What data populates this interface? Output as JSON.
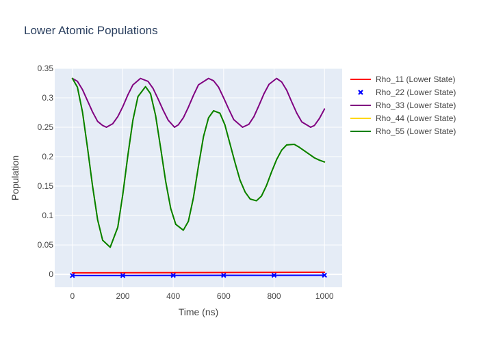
{
  "chart_data": {
    "type": "line",
    "title": "Lower Atomic Populations",
    "xlabel": "Time (ns)",
    "ylabel": "Population",
    "xlim": [
      -70,
      1070
    ],
    "ylim": [
      -0.022,
      0.35
    ],
    "xticks": [
      0,
      200,
      400,
      600,
      800,
      1000
    ],
    "xtick_labels": [
      "0",
      "200",
      "400",
      "600",
      "800",
      "1000"
    ],
    "yticks": [
      0,
      0.05,
      0.1,
      0.15,
      0.2,
      0.25,
      0.3,
      0.35
    ],
    "ytick_labels": [
      "0",
      "0.05",
      "0.1",
      "0.15",
      "0.2",
      "0.25",
      "0.3",
      "0.35"
    ],
    "grid": true,
    "plot_background": "#e5ecf6",
    "grid_color": "#ffffff",
    "legend_position": "right",
    "series": [
      {
        "name": "Rho_11 (Lower State)",
        "color": "#ff0000",
        "mode": "lines",
        "x": [
          0,
          1000
        ],
        "y": [
          0.0025,
          0.0035
        ]
      },
      {
        "name": "Rho_22 (Lower State)",
        "color": "#0000ff",
        "mode": "markers",
        "marker": "x",
        "x": [
          0,
          200,
          400,
          600,
          800,
          1000
        ],
        "y": [
          -0.002,
          -0.002,
          -0.0018,
          -0.0017,
          -0.0016,
          -0.0015
        ]
      },
      {
        "name": "Rho_33 (Lower State)",
        "color": "#800080",
        "mode": "lines",
        "x": [
          0,
          20,
          40,
          60,
          80,
          100,
          120,
          135,
          160,
          180,
          200,
          220,
          240,
          270,
          300,
          320,
          340,
          360,
          380,
          405,
          420,
          440,
          460,
          480,
          500,
          540,
          560,
          580,
          600,
          620,
          640,
          675,
          700,
          720,
          740,
          760,
          780,
          810,
          830,
          850,
          870,
          890,
          910,
          945,
          960,
          980,
          1000
        ],
        "y": [
          0.333,
          0.328,
          0.314,
          0.295,
          0.276,
          0.26,
          0.253,
          0.25,
          0.256,
          0.268,
          0.285,
          0.305,
          0.322,
          0.333,
          0.328,
          0.316,
          0.298,
          0.279,
          0.262,
          0.25,
          0.254,
          0.266,
          0.284,
          0.304,
          0.322,
          0.333,
          0.329,
          0.318,
          0.3,
          0.281,
          0.263,
          0.25,
          0.255,
          0.268,
          0.287,
          0.307,
          0.323,
          0.333,
          0.327,
          0.313,
          0.293,
          0.274,
          0.259,
          0.25,
          0.253,
          0.265,
          0.281
        ]
      },
      {
        "name": "Rho_44 (Lower State)",
        "color": "#ffd700",
        "mode": "lines",
        "x": [
          0,
          20,
          40,
          60,
          80,
          100,
          120,
          150,
          180,
          200,
          220,
          240,
          260,
          290,
          310,
          330,
          350,
          370,
          390,
          410,
          440,
          460,
          480,
          500,
          520,
          540,
          560,
          585,
          605,
          625,
          645,
          665,
          685,
          705,
          730,
          750,
          770,
          790,
          810,
          830,
          850,
          880,
          900,
          920,
          940,
          960,
          980,
          1000
        ],
        "y": [
          0.333,
          0.318,
          0.276,
          0.215,
          0.15,
          0.093,
          0.058,
          0.046,
          0.08,
          0.136,
          0.202,
          0.262,
          0.302,
          0.319,
          0.307,
          0.27,
          0.215,
          0.158,
          0.112,
          0.085,
          0.075,
          0.09,
          0.13,
          0.184,
          0.234,
          0.266,
          0.278,
          0.274,
          0.254,
          0.222,
          0.19,
          0.16,
          0.14,
          0.128,
          0.125,
          0.133,
          0.151,
          0.174,
          0.195,
          0.211,
          0.22,
          0.221,
          0.216,
          0.21,
          0.204,
          0.198,
          0.194,
          0.191
        ]
      },
      {
        "name": "Rho_55 (Lower State)",
        "color": "#008000",
        "mode": "lines",
        "x": [
          0,
          20,
          40,
          60,
          80,
          100,
          120,
          150,
          180,
          200,
          220,
          240,
          260,
          290,
          310,
          330,
          350,
          370,
          390,
          410,
          440,
          460,
          480,
          500,
          520,
          540,
          560,
          585,
          605,
          625,
          645,
          665,
          685,
          705,
          730,
          750,
          770,
          790,
          810,
          830,
          850,
          880,
          900,
          920,
          940,
          960,
          980,
          1000
        ],
        "y": [
          0.333,
          0.318,
          0.276,
          0.215,
          0.15,
          0.093,
          0.058,
          0.046,
          0.08,
          0.136,
          0.202,
          0.262,
          0.302,
          0.319,
          0.307,
          0.27,
          0.215,
          0.158,
          0.112,
          0.085,
          0.075,
          0.09,
          0.13,
          0.184,
          0.234,
          0.266,
          0.278,
          0.274,
          0.254,
          0.222,
          0.19,
          0.16,
          0.14,
          0.128,
          0.125,
          0.133,
          0.151,
          0.174,
          0.195,
          0.211,
          0.22,
          0.221,
          0.216,
          0.21,
          0.204,
          0.198,
          0.194,
          0.191
        ]
      }
    ]
  }
}
